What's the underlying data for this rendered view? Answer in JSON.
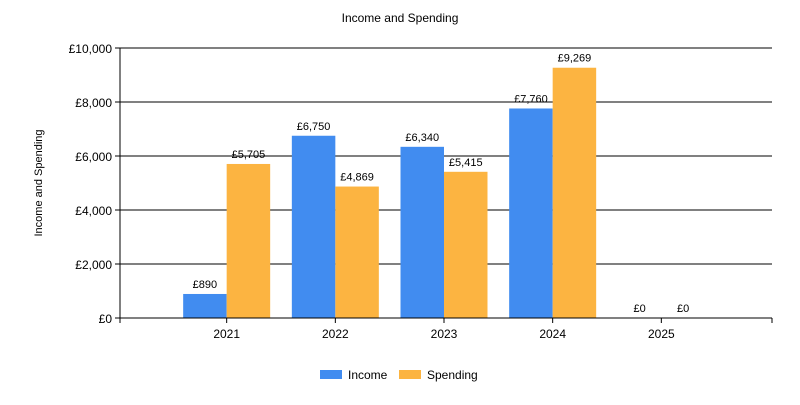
{
  "chart_data": {
    "type": "bar",
    "title": "Income and Spending",
    "xlabel": "",
    "ylabel": "Income and Spending",
    "categories": [
      "2021",
      "2022",
      "2023",
      "2024",
      "2025"
    ],
    "series": [
      {
        "name": "Income",
        "color": "#418CF0",
        "values": [
          890,
          6750,
          6340,
          7760,
          0
        ],
        "labels": [
          "£890",
          "£6,750",
          "£6,340",
          "£7,760",
          "£0"
        ]
      },
      {
        "name": "Spending",
        "color": "#FCB441",
        "values": [
          5705,
          4869,
          5415,
          9269,
          0
        ],
        "labels": [
          "£5,705",
          "£4,869",
          "£5,415",
          "£9,269",
          "£0"
        ]
      }
    ],
    "ylim": [
      0,
      10000
    ],
    "yticks": [
      0,
      2000,
      4000,
      6000,
      8000,
      10000
    ],
    "ytick_labels": [
      "£0",
      "£2,000",
      "£4,000",
      "£6,000",
      "£8,000",
      "£10,000"
    ],
    "grid": true,
    "legend_position": "bottom-center"
  }
}
